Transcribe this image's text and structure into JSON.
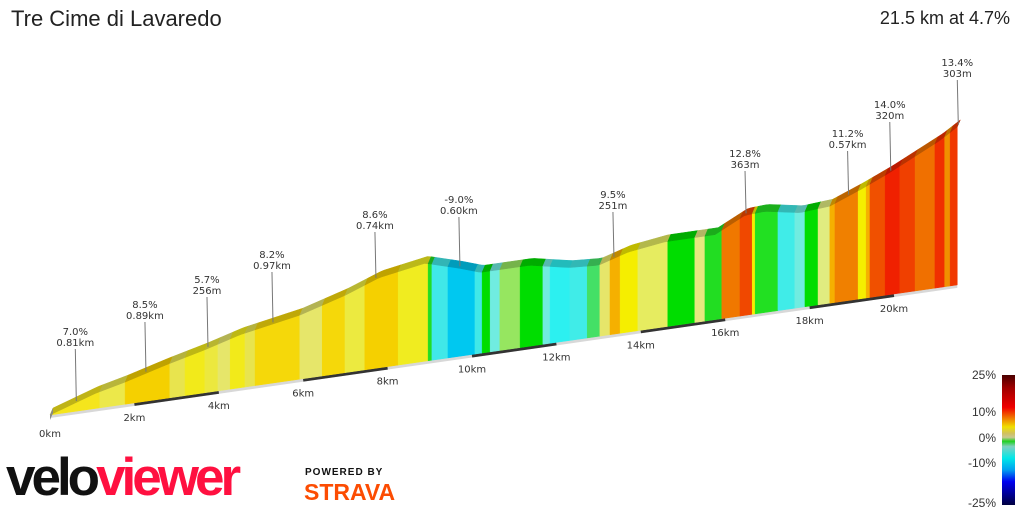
{
  "header": {
    "title": "Tre Cime di Lavaredo",
    "summary": "21.5 km at 4.7%"
  },
  "chart_data": {
    "type": "area",
    "title": "Tre Cime di Lavaredo",
    "xlabel": "",
    "ylabel": "",
    "xlim": [
      0,
      21.5
    ],
    "x_ticks": [
      "0km",
      "2km",
      "4km",
      "6km",
      "8km",
      "10km",
      "12km",
      "14km",
      "16km",
      "18km",
      "20km"
    ],
    "profile": [
      [
        0,
        0
      ],
      [
        1.07,
        95
      ],
      [
        1.78,
        140
      ],
      [
        2.73,
        210
      ],
      [
        3.67,
        272
      ],
      [
        4.5,
        335
      ],
      [
        5.92,
        405
      ],
      [
        7.0,
        490
      ],
      [
        7.8,
        570
      ],
      [
        8.89,
        620
      ],
      [
        9.7,
        557
      ],
      [
        10.2,
        512
      ],
      [
        11.37,
        512
      ],
      [
        12.3,
        462
      ],
      [
        13.0,
        450
      ],
      [
        13.7,
        506
      ],
      [
        14.57,
        538
      ],
      [
        15.76,
        538
      ],
      [
        16.47,
        633
      ],
      [
        16.94,
        640
      ],
      [
        17.77,
        600
      ],
      [
        18.48,
        614
      ],
      [
        19.2,
        690
      ],
      [
        19.9,
        772
      ],
      [
        21.09,
        930
      ],
      [
        21.5,
        1000
      ]
    ],
    "segments": [
      [
        1.18,
        "#f5e51c"
      ],
      [
        1.78,
        "#ece84a"
      ],
      [
        2.84,
        "#f5d000"
      ],
      [
        3.2,
        "#e8e44e"
      ],
      [
        3.67,
        "#f2ea1a"
      ],
      [
        3.98,
        "#ece83e"
      ],
      [
        4.27,
        "#e6e66a"
      ],
      [
        4.62,
        "#f2ea1a"
      ],
      [
        4.86,
        "#e8e44e"
      ],
      [
        5.92,
        "#f5d80a"
      ],
      [
        6.45,
        "#e6e66a"
      ],
      [
        6.99,
        "#f5d80a"
      ],
      [
        7.46,
        "#ecea40"
      ],
      [
        8.25,
        "#f5d000"
      ],
      [
        8.96,
        "#f0ec20"
      ],
      [
        9.05,
        "#22dd22"
      ],
      [
        9.43,
        "#40e8e8"
      ],
      [
        10.07,
        "#00c8f0"
      ],
      [
        10.24,
        "#40e8e8"
      ],
      [
        10.43,
        "#00dd00"
      ],
      [
        10.66,
        "#70ece0"
      ],
      [
        11.14,
        "#96e660"
      ],
      [
        11.68,
        "#00dd00"
      ],
      [
        11.85,
        "#70ece0"
      ],
      [
        12.32,
        "#2cf0f0"
      ],
      [
        12.73,
        "#40ece8"
      ],
      [
        13.03,
        "#44e066"
      ],
      [
        13.27,
        "#e6e66a"
      ],
      [
        13.51,
        "#f5b000"
      ],
      [
        13.93,
        "#f5ee00"
      ],
      [
        14.64,
        "#e6ec60"
      ],
      [
        15.28,
        "#00dd00"
      ],
      [
        15.52,
        "#e6e880"
      ],
      [
        15.92,
        "#22dd22"
      ],
      [
        16.35,
        "#f07800"
      ],
      [
        16.64,
        "#f04800"
      ],
      [
        16.71,
        "#f5ee00"
      ],
      [
        17.25,
        "#22e022"
      ],
      [
        17.65,
        "#40ece8"
      ],
      [
        17.89,
        "#70ece0"
      ],
      [
        18.2,
        "#00dd00"
      ],
      [
        18.48,
        "#e0ec80"
      ],
      [
        18.6,
        "#f5b000"
      ],
      [
        19.15,
        "#f08000"
      ],
      [
        19.34,
        "#f5ee00"
      ],
      [
        19.43,
        "#f5b000"
      ],
      [
        19.79,
        "#f05000"
      ],
      [
        20.14,
        "#f02000"
      ],
      [
        20.5,
        "#f04000"
      ],
      [
        20.97,
        "#f07000"
      ],
      [
        21.2,
        "#f03000"
      ],
      [
        21.33,
        "#f09000"
      ],
      [
        21.5,
        "#f03800"
      ]
    ],
    "annotations": [
      {
        "km": 0.6,
        "grade": "7.0%",
        "length": "0.81km"
      },
      {
        "km": 2.25,
        "grade": "8.5%",
        "length": "0.89km"
      },
      {
        "km": 3.72,
        "grade": "5.7%",
        "length": "256m"
      },
      {
        "km": 5.26,
        "grade": "8.2%",
        "length": "0.97km"
      },
      {
        "km": 7.7,
        "grade": "8.6%",
        "length": "0.74km"
      },
      {
        "km": 9.69,
        "grade": "-9.0%",
        "length": "0.60km"
      },
      {
        "km": 13.34,
        "grade": "9.5%",
        "length": "251m"
      },
      {
        "km": 16.47,
        "grade": "12.8%",
        "length": "363m"
      },
      {
        "km": 18.9,
        "grade": "11.2%",
        "length": "0.57km"
      },
      {
        "km": 19.9,
        "grade": "14.0%",
        "length": "320m"
      },
      {
        "km": 21.5,
        "grade": "13.4%",
        "length": "303m"
      }
    ],
    "legend": {
      "labels": [
        "25%",
        "10%",
        "0%",
        "-10%",
        "-25%"
      ],
      "placement": "bottom-right"
    }
  },
  "branding": {
    "logo_velo": "velo",
    "logo_viewer": "viewer",
    "powered_by": "POWERED BY",
    "strava": "STRAVA",
    "logo_colors": {
      "velo": "#111111",
      "viewer": "#ff1040",
      "strava": "#fc4c02"
    }
  }
}
